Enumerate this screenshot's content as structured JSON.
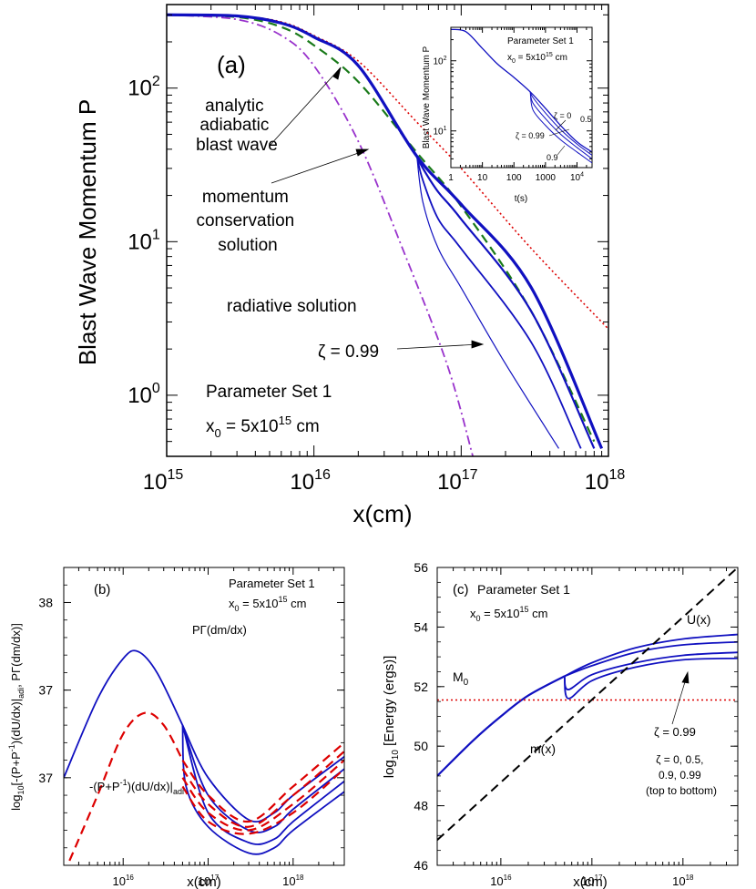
{
  "chart_data": [
    {
      "panel": "(a)",
      "type": "line",
      "xlabel": "x(cm)",
      "ylabel": "Blast Wave Momentum P",
      "xscale": "log",
      "yscale": "log",
      "xlim": [
        1000000000000000.0,
        1e+18
      ],
      "ylim": [
        0.4,
        350
      ],
      "xticks": [
        {
          "base": "10",
          "exp": "15",
          "value": 1000000000000000.0
        },
        {
          "base": "10",
          "exp": "16",
          "value": 1e+16
        },
        {
          "base": "10",
          "exp": "17",
          "value": 1e+17
        },
        {
          "base": "10",
          "exp": "18",
          "value": 1e+18
        }
      ],
      "yticks": [
        {
          "base": "10",
          "exp": "0",
          "value": 1
        },
        {
          "base": "10",
          "exp": "1",
          "value": 10
        },
        {
          "base": "10",
          "exp": "2",
          "value": 100
        }
      ],
      "annotations": {
        "panel_label": "(a)",
        "adiabatic": [
          "analytic",
          "adiabatic",
          "blast wave"
        ],
        "momentum": [
          "momentum",
          "conservation",
          "solution"
        ],
        "radiative": "radiative solution",
        "zeta": "ζ = 0.99",
        "param_set": "Parameter Set 1",
        "x0_prefix": "x",
        "x0_sub": "0",
        "x0_value": " = 5x10",
        "x0_exp": "15",
        "x0_unit": " cm"
      },
      "series": [
        {
          "role": "analytic-adiabatic",
          "color": "#dd0000",
          "style": "dotted",
          "x": [
            1000000000000000.0,
            3000000000000000.0,
            6000000000000000.0,
            1e+16,
            2e+16,
            5e+16,
            1e+17,
            3e+17,
            1e+18
          ],
          "y": [
            300,
            295,
            270,
            220,
            150,
            60,
            30,
            9,
            2.7
          ]
        },
        {
          "role": "momentum-conservation",
          "color": "#1a7a1a",
          "style": "dashed",
          "x": [
            1000000000000000.0,
            3000000000000000.0,
            6000000000000000.0,
            1e+16,
            2e+16,
            5e+16,
            1e+17,
            3e+17,
            8e+17
          ],
          "y": [
            300,
            290,
            250,
            190,
            110,
            38,
            17,
            3.5,
            0.5
          ]
        },
        {
          "role": "radiative",
          "color": "#9933cc",
          "style": "dashdot",
          "x": [
            1000000000000000.0,
            3000000000000000.0,
            6000000000000000.0,
            1e+16,
            2e+16,
            4e+16,
            8e+16,
            1.2e+17
          ],
          "y": [
            300,
            280,
            220,
            140,
            45,
            9,
            1.6,
            0.4
          ]
        },
        {
          "role": "zeta-0",
          "color": "#1010c0",
          "x": [
            1000000000000000.0,
            3000000000000000.0,
            6000000000000000.0,
            1e+16,
            2e+16,
            5e+16,
            1e+17,
            3e+17,
            9e+17
          ],
          "y": [
            300,
            295,
            265,
            215,
            140,
            36,
            17.5,
            5,
            0.45
          ]
        },
        {
          "role": "zeta-0.5",
          "color": "#1010c0",
          "x": [
            5e+16,
            5.5e+16,
            7e+16,
            1e+17,
            3e+17,
            8e+17
          ],
          "y": [
            36,
            30,
            21,
            14,
            3.5,
            0.45
          ]
        },
        {
          "role": "zeta-0.9",
          "color": "#1010c0",
          "x": [
            5e+16,
            5.5e+16,
            7e+16,
            1e+17,
            3e+17,
            6.5e+17
          ],
          "y": [
            36,
            25,
            14,
            9,
            2.2,
            0.45
          ]
        },
        {
          "role": "zeta-0.99",
          "color": "#1010c0",
          "x": [
            5e+16,
            5.5e+16,
            7e+16,
            1e+17,
            2e+17,
            4.6e+17
          ],
          "y": [
            36,
            18,
            9,
            5,
            1.6,
            0.45
          ]
        }
      ],
      "inset": {
        "xlabel": "t(s)",
        "ylabel": "Blast Wave Momentum P",
        "title": "Parameter Set 1",
        "x0_prefix": "x",
        "x0_sub": "0",
        "x0_value": " = 5x10",
        "x0_exp": "15",
        "x0_unit": " cm",
        "xticks": [
          "1",
          "10",
          "100",
          "1000",
          "10"
        ],
        "xtick_exp": "4",
        "yticks": [
          {
            "base": "10",
            "exp": "1"
          },
          {
            "base": "10",
            "exp": "2"
          }
        ],
        "labels": {
          "z0": "ζ = 0",
          "z05": "0.5",
          "z099": "ζ = 0.99",
          "z09": "0.9"
        },
        "xlim": [
          1,
          30000
        ],
        "ylim": [
          3,
          300
        ],
        "series": [
          {
            "x": [
              1,
              3,
              10,
              30,
              100,
              330,
              1000,
              3000,
              10000,
              30000
            ],
            "y": [
              280,
              260,
              150,
              90,
              58,
              36,
              21,
              12,
              7,
              5
            ]
          },
          {
            "x": [
              330,
              400,
              1000,
              3000,
              10000,
              30000
            ],
            "y": [
              36,
              30,
              18,
              10.5,
              6.5,
              4.5
            ]
          },
          {
            "x": [
              330,
              400,
              1000,
              3000,
              10000,
              30000
            ],
            "y": [
              36,
              25,
              15,
              9,
              5.8,
              4
            ]
          },
          {
            "x": [
              330,
              400,
              1000,
              3000,
              10000,
              30000
            ],
            "y": [
              36,
              20,
              12,
              7.5,
              5,
              3.5
            ]
          }
        ]
      }
    },
    {
      "panel": "(b)",
      "type": "line",
      "xlabel": "x(cm)",
      "ylabel_parts": [
        "log",
        "10",
        "[-(P+P",
        "-1",
        ")(dU/dx)|",
        "adi",
        ", PΓ(dm/dx)]"
      ],
      "xscale": "log",
      "xlim": [
        2000000000000000.0,
        4e+18
      ],
      "ylim": [
        36.5,
        38.2
      ],
      "yticks": [
        {
          "label": "38",
          "value": 38
        },
        {
          "label": "37",
          "value": 37.5
        },
        {
          "label": "37",
          "value": 37
        }
      ],
      "xticks": [
        {
          "base": "10",
          "exp": "16",
          "value": 1e+16
        },
        {
          "base": "10",
          "exp": "17",
          "value": 1e+17
        },
        {
          "base": "10",
          "exp": "18",
          "value": 1e+18
        }
      ],
      "annotations": {
        "panel_label": "(b)",
        "param_set": "Parameter Set 1",
        "x0_prefix": "x",
        "x0_sub": "0",
        "x0_value": " = 5x10",
        "x0_exp": "15",
        "x0_unit": " cm",
        "gamma_label": "PΓ(dm/dx)",
        "adi_parts": [
          "-(P+P",
          "-1",
          ")(dU/dx)|",
          "adi"
        ]
      },
      "series": [
        {
          "role": "gamma-main",
          "color": "#1010c0",
          "style": "solid",
          "x": [
            2000000000000000.0,
            5000000000000000.0,
            1e+16,
            1.5e+16,
            2.5e+16,
            5e+16
          ],
          "y": [
            37.0,
            37.45,
            37.68,
            37.72,
            37.6,
            37.3
          ]
        },
        {
          "role": "gamma-branch-1",
          "color": "#1010c0",
          "style": "solid",
          "x": [
            5e+16,
            1e+17,
            3e+17,
            6e+17,
            1e+18,
            4e+18
          ],
          "y": [
            37.3,
            37.0,
            36.76,
            36.8,
            36.9,
            37.12
          ]
        },
        {
          "role": "gamma-branch-2",
          "color": "#1010c0",
          "style": "solid",
          "x": [
            5e+16,
            1e+17,
            3e+17,
            6e+17,
            1e+18,
            4e+18
          ],
          "y": [
            37.3,
            36.9,
            36.7,
            36.72,
            36.82,
            37.05
          ]
        },
        {
          "role": "gamma-branch-3",
          "color": "#1010c0",
          "style": "solid",
          "x": [
            5e+16,
            1e+17,
            3e+17,
            6e+17,
            1e+18,
            4e+18
          ],
          "y": [
            37.3,
            36.8,
            36.63,
            36.65,
            36.75,
            36.98
          ]
        },
        {
          "role": "gamma-branch-4",
          "color": "#1010c0",
          "style": "solid",
          "x": [
            5e+16,
            5.5e+16,
            1e+17,
            3e+17,
            6e+17,
            1e+18,
            4e+18
          ],
          "y": [
            37.3,
            36.95,
            36.72,
            36.57,
            36.6,
            36.7,
            36.92
          ]
        },
        {
          "role": "adi-main",
          "color": "#dd0000",
          "style": "dashed",
          "x": [
            2000000000000000.0,
            5000000000000000.0,
            1e+16,
            1.8e+16,
            3e+16,
            5e+16
          ],
          "y": [
            36.45,
            36.9,
            37.25,
            37.37,
            37.3,
            37.1
          ]
        },
        {
          "role": "adi-branch-1",
          "color": "#dd0000",
          "style": "dashed",
          "x": [
            5e+16,
            1e+17,
            3e+17,
            1e+18,
            4e+18
          ],
          "y": [
            37.1,
            36.9,
            36.75,
            36.95,
            37.2
          ]
        },
        {
          "role": "adi-branch-2",
          "color": "#dd0000",
          "style": "dashed",
          "x": [
            5e+16,
            1e+17,
            3e+17,
            1e+18,
            4e+18
          ],
          "y": [
            37.05,
            36.85,
            36.72,
            36.9,
            37.15
          ]
        },
        {
          "role": "adi-branch-3",
          "color": "#dd0000",
          "style": "dashed",
          "x": [
            5e+16,
            1e+17,
            3e+17,
            1e+18,
            4e+18
          ],
          "y": [
            37.0,
            36.8,
            36.7,
            36.85,
            37.1
          ]
        },
        {
          "role": "adi-branch-4",
          "color": "#dd0000",
          "style": "dashed",
          "x": [
            5e+16,
            1e+17,
            3e+17,
            1e+18,
            4e+18
          ],
          "y": [
            36.95,
            36.75,
            36.68,
            36.8,
            37.05
          ]
        }
      ]
    },
    {
      "panel": "(c)",
      "type": "line",
      "xlabel": "x(cm)",
      "ylabel_parts": [
        "log",
        "10",
        " [Energy (ergs)]"
      ],
      "xscale": "log",
      "xlim": [
        2000000000000000.0,
        4e+18
      ],
      "ylim": [
        46,
        56
      ],
      "yticks": [
        {
          "label": "46",
          "value": 46
        },
        {
          "label": "48",
          "value": 48
        },
        {
          "label": "50",
          "value": 50
        },
        {
          "label": "52",
          "value": 52
        },
        {
          "label": "54",
          "value": 54
        },
        {
          "label": "56",
          "value": 56
        }
      ],
      "xticks": [
        {
          "base": "10",
          "exp": "16",
          "value": 1e+16
        },
        {
          "base": "10",
          "exp": "17",
          "value": 1e+17
        },
        {
          "base": "10",
          "exp": "18",
          "value": 1e+18
        }
      ],
      "annotations": {
        "panel_label": "(c)",
        "param_set": "Parameter Set 1",
        "x0_prefix": "x",
        "x0_sub": "0",
        "x0_value": " = 5x10",
        "x0_exp": "15",
        "x0_unit": " cm",
        "U": "U(x)",
        "M0_base": "M",
        "M0_sub": "0",
        "m": "m(x)",
        "zeta": "ζ = 0.99",
        "zeta_list": [
          "ζ = 0, 0.5,",
          "0.9, 0.99",
          "(top to bottom)"
        ]
      },
      "series": [
        {
          "role": "U-main",
          "color": "#1010c0",
          "style": "solid",
          "x": [
            2000000000000000.0,
            5000000000000000.0,
            1e+16,
            2e+16,
            5e+16
          ],
          "y": [
            49.0,
            50.2,
            51.0,
            51.7,
            52.35
          ]
        },
        {
          "role": "U-zeta-0",
          "color": "#1010c0",
          "style": "solid",
          "x": [
            5e+16,
            1e+17,
            3e+17,
            1e+18,
            4e+18
          ],
          "y": [
            52.35,
            52.8,
            53.3,
            53.6,
            53.75
          ]
        },
        {
          "role": "U-zeta-0.5",
          "color": "#1010c0",
          "style": "solid",
          "x": [
            5e+16,
            1e+17,
            3e+17,
            1e+18,
            4e+18
          ],
          "y": [
            52.35,
            52.7,
            53.15,
            53.4,
            53.5
          ]
        },
        {
          "role": "U-zeta-0.9",
          "color": "#1010c0",
          "style": "solid",
          "x": [
            5e+16,
            5.5e+16,
            1e+17,
            3e+17,
            1e+18,
            4e+18
          ],
          "y": [
            52.35,
            51.9,
            52.4,
            52.8,
            53.05,
            53.15
          ]
        },
        {
          "role": "U-zeta-0.99",
          "color": "#1010c0",
          "style": "solid",
          "x": [
            5e+16,
            5.5e+16,
            1e+17,
            3e+17,
            1e+18,
            4e+18
          ],
          "y": [
            52.35,
            51.6,
            52.2,
            52.65,
            52.9,
            52.95
          ]
        },
        {
          "role": "M0",
          "color": "#dd0000",
          "style": "dotted",
          "x": [
            2000000000000000.0,
            4e+18
          ],
          "y": [
            51.55,
            51.55
          ]
        },
        {
          "role": "m(x)",
          "color": "#000000",
          "style": "dashed",
          "x": [
            2000000000000000.0,
            4e+18
          ],
          "y": [
            46.85,
            56.0
          ]
        }
      ]
    }
  ]
}
